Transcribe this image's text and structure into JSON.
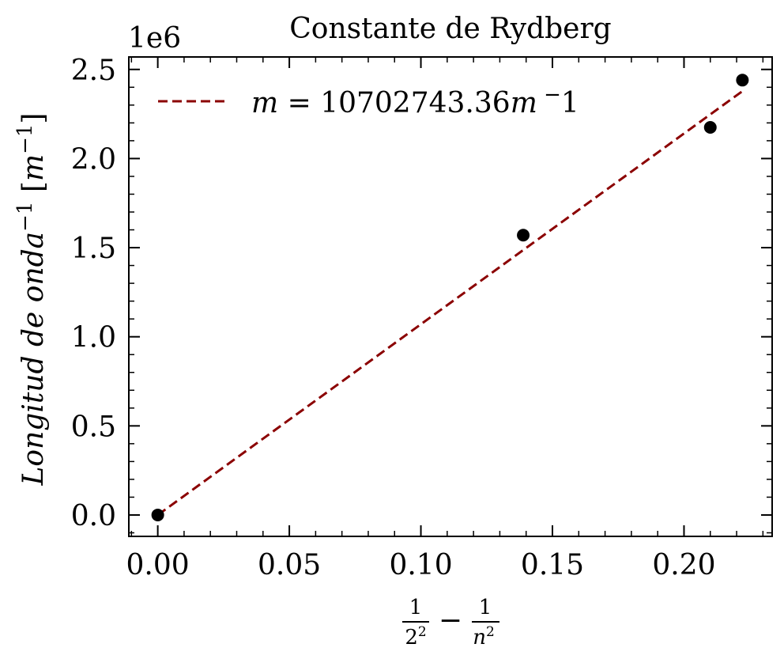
{
  "chart_data": {
    "type": "scatter",
    "title": "Constante de Rydberg",
    "xlabel": "1/2² − 1/n²",
    "ylabel": "Longitud de onda⁻¹ [m⁻¹]",
    "y_offset_label": "1e6",
    "xlim": [
      -0.011,
      0.2335
    ],
    "ylim": [
      -0.12,
      2.57
    ],
    "y_scale_note": "values in units of 1e6 m^-1",
    "x_ticks": [
      0.0,
      0.05,
      0.1,
      0.15,
      0.2
    ],
    "x_tick_labels": [
      "0.00",
      "0.05",
      "0.10",
      "0.15",
      "0.20"
    ],
    "y_ticks": [
      0.0,
      0.5,
      1.0,
      1.5,
      2.0,
      2.5
    ],
    "y_tick_labels": [
      "0.0",
      "0.5",
      "1.0",
      "1.5",
      "2.0",
      "2.5"
    ],
    "grid": false,
    "legend_placement": "upper-left",
    "series": [
      {
        "kind": "points",
        "color": "#000000",
        "x": [
          0.0,
          0.1389,
          0.21,
          0.2222
        ],
        "y": [
          0.0,
          1.57,
          2.175,
          2.44
        ]
      },
      {
        "kind": "fit-line",
        "name": "m = 10702743.36m⁻1",
        "color": "#8b0000",
        "style": "dashed",
        "slope": 10.70274336,
        "intercept": 0.0,
        "x_range": [
          0.0,
          0.2222
        ]
      }
    ]
  }
}
